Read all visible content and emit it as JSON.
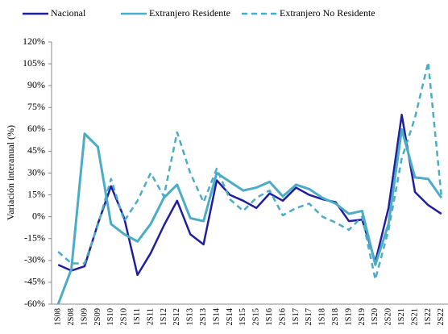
{
  "chart_data": {
    "type": "line",
    "y_label": "Variación interanual (%)",
    "categories": [
      "1S08",
      "2S08",
      "1S09",
      "2S09",
      "1S10",
      "2S10",
      "1S11",
      "2S11",
      "1S12",
      "2S12",
      "1S13",
      "2S13",
      "1S14",
      "2S14",
      "1S15",
      "2S15",
      "1S16",
      "2S16",
      "1S17",
      "2S17",
      "1S18",
      "2S18",
      "1S19",
      "2S19",
      "1S20",
      "2S20",
      "1S21",
      "2S21",
      "1S22",
      "2S22"
    ],
    "series": [
      {
        "name": "Nacional",
        "color": "#1f1f9e",
        "dash": false,
        "values": [
          -33,
          -37,
          -34,
          -5,
          21,
          -1,
          -40,
          -25,
          -6,
          11,
          -12,
          -19,
          25,
          15,
          11,
          6,
          16,
          11,
          20,
          15,
          12,
          10,
          -3,
          -2,
          -31,
          6,
          70,
          17,
          8,
          2
        ]
      },
      {
        "name": "Extranjero Residente",
        "color": "#4bacc6",
        "dash": false,
        "values": [
          -60,
          -36,
          57,
          48,
          -5,
          -12,
          -17,
          -5,
          13,
          22,
          -1,
          -3,
          30,
          24,
          18,
          20,
          24,
          14,
          22,
          19,
          13,
          9,
          2,
          4,
          -33,
          -5,
          60,
          27,
          26,
          13
        ]
      },
      {
        "name": "Extranjero No Residente",
        "color": "#4bacc6",
        "dash": true,
        "values": [
          -24,
          -32,
          -32,
          -6,
          26,
          -3,
          11,
          30,
          14,
          58,
          30,
          10,
          33,
          12,
          4,
          13,
          18,
          1,
          6,
          9,
          0,
          -4,
          -9,
          0,
          -43,
          -9,
          40,
          68,
          106,
          14
        ]
      }
    ],
    "ylim": [
      -60,
      120
    ],
    "yticks": [
      {
        "value": -60,
        "label": "-60%"
      },
      {
        "value": -45,
        "label": "-45%"
      },
      {
        "value": -30,
        "label": "-30%"
      },
      {
        "value": -15,
        "label": "-15%"
      },
      {
        "value": 0,
        "label": "0%"
      },
      {
        "value": 15,
        "label": "15%"
      },
      {
        "value": 30,
        "label": "30%"
      },
      {
        "value": 45,
        "label": "45%"
      },
      {
        "value": 60,
        "label": "60%"
      },
      {
        "value": 75,
        "label": "75%"
      },
      {
        "value": 90,
        "label": "90%"
      },
      {
        "value": 105,
        "label": "105%"
      },
      {
        "value": 120,
        "label": "120%"
      }
    ],
    "grid": false
  }
}
